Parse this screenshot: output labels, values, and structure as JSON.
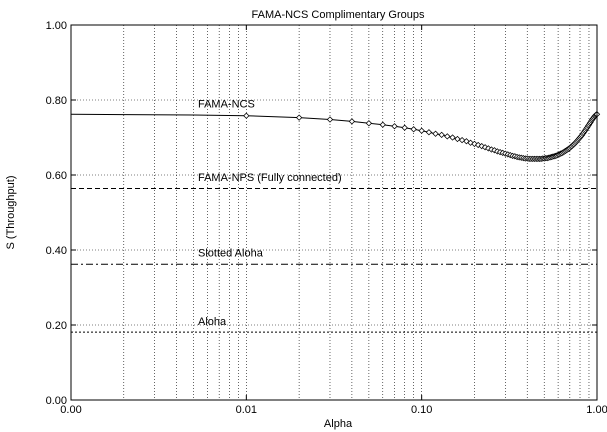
{
  "chart_data": {
    "type": "line",
    "title": "FAMA-NCS Complimentary Groups",
    "xlabel": "Alpha",
    "ylabel": "S (Throughput)",
    "x_scale": "log",
    "xlim": [
      0.001,
      1.0
    ],
    "ylim": [
      0.0,
      1.0
    ],
    "x_ticks": [
      {
        "value": 0.001,
        "label": "0.00"
      },
      {
        "value": 0.01,
        "label": "0.01"
      },
      {
        "value": 0.1,
        "label": "0.10"
      },
      {
        "value": 1.0,
        "label": "1.00"
      }
    ],
    "y_ticks": [
      {
        "value": 0.0,
        "label": "0.00"
      },
      {
        "value": 0.2,
        "label": "0.20"
      },
      {
        "value": 0.4,
        "label": "0.40"
      },
      {
        "value": 0.6,
        "label": "0.60"
      },
      {
        "value": 0.8,
        "label": "0.80"
      },
      {
        "value": 1.0,
        "label": "1.00"
      }
    ],
    "grid": true,
    "series": [
      {
        "name": "FAMA-NCS",
        "style": "solid",
        "marker": "diamond",
        "x": [
          0.001,
          0.002,
          0.005,
          0.01,
          0.02,
          0.03,
          0.04,
          0.05,
          0.06,
          0.07,
          0.08,
          0.09,
          0.1,
          0.11,
          0.12,
          0.13,
          0.14,
          0.15,
          0.16,
          0.17,
          0.18,
          0.19,
          0.2,
          0.21,
          0.22,
          0.23,
          0.24,
          0.25,
          0.26,
          0.27,
          0.28,
          0.29,
          0.3,
          0.31,
          0.32,
          0.33,
          0.34,
          0.35,
          0.36,
          0.37,
          0.38,
          0.39,
          0.4,
          0.41,
          0.42,
          0.43,
          0.44,
          0.45,
          0.46,
          0.47,
          0.48,
          0.49,
          0.5,
          0.51,
          0.52,
          0.53,
          0.54,
          0.55,
          0.56,
          0.57,
          0.58,
          0.59,
          0.6,
          0.61,
          0.62,
          0.63,
          0.64,
          0.65,
          0.66,
          0.67,
          0.68,
          0.69,
          0.7,
          0.71,
          0.72,
          0.73,
          0.74,
          0.75,
          0.76,
          0.77,
          0.78,
          0.79,
          0.8,
          0.81,
          0.82,
          0.83,
          0.84,
          0.85,
          0.86,
          0.87,
          0.88,
          0.89,
          0.9,
          0.91,
          0.92,
          0.93,
          0.94,
          0.95,
          0.96,
          0.97,
          0.98,
          0.99,
          1.0
        ],
        "y": [
          0.762,
          0.761,
          0.76,
          0.758,
          0.753,
          0.748,
          0.743,
          0.738,
          0.734,
          0.73,
          0.726,
          0.722,
          0.718,
          0.714,
          0.71,
          0.707,
          0.703,
          0.7,
          0.696,
          0.693,
          0.69,
          0.686,
          0.683,
          0.68,
          0.677,
          0.674,
          0.671,
          0.668,
          0.666,
          0.663,
          0.661,
          0.659,
          0.657,
          0.655,
          0.653,
          0.651,
          0.65,
          0.648,
          0.647,
          0.646,
          0.645,
          0.644,
          0.644,
          0.643,
          0.643,
          0.643,
          0.643,
          0.643,
          0.643,
          0.643,
          0.643,
          0.644,
          0.644,
          0.645,
          0.645,
          0.646,
          0.647,
          0.648,
          0.649,
          0.65,
          0.651,
          0.652,
          0.654,
          0.655,
          0.657,
          0.658,
          0.66,
          0.662,
          0.664,
          0.666,
          0.668,
          0.67,
          0.672,
          0.675,
          0.677,
          0.68,
          0.682,
          0.685,
          0.688,
          0.691,
          0.694,
          0.697,
          0.7,
          0.703,
          0.706,
          0.71,
          0.713,
          0.717,
          0.72,
          0.724,
          0.727,
          0.731,
          0.734,
          0.738,
          0.741,
          0.745,
          0.748,
          0.751,
          0.754,
          0.757,
          0.759,
          0.761,
          0.762
        ]
      },
      {
        "name": "FAMA-NPS (Fully connected)",
        "style": "dashed",
        "x": [
          0.001,
          1.0
        ],
        "y": [
          0.564,
          0.564
        ]
      },
      {
        "name": "Slotted Aloha",
        "style": "dashdot",
        "x": [
          0.001,
          1.0
        ],
        "y": [
          0.362,
          0.362
        ]
      },
      {
        "name": "Aloha",
        "style": "dotted",
        "x": [
          0.001,
          1.0
        ],
        "y": [
          0.181,
          0.181
        ]
      }
    ],
    "annotations": [
      {
        "text": "FAMA-NCS",
        "x": 0.0053,
        "y": 0.78
      },
      {
        "text": "FAMA-NPS (Fully connected)",
        "x": 0.0053,
        "y": 0.584
      },
      {
        "text": "Slotted Aloha",
        "x": 0.0053,
        "y": 0.383
      },
      {
        "text": "Aloha",
        "x": 0.0053,
        "y": 0.2
      }
    ]
  }
}
